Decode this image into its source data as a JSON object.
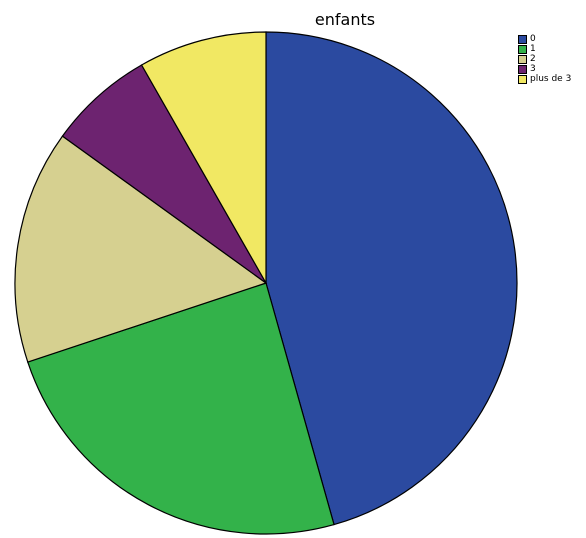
{
  "chart_data": {
    "type": "pie",
    "title": "enfants",
    "categories": [
      "0",
      "1",
      "2",
      "3",
      "plus de 3"
    ],
    "values": [
      47.0,
      25.0,
      15.5,
      7.0,
      8.5
    ],
    "colors": [
      "#2b4aa0",
      "#33b24a",
      "#d6d090",
      "#6d2370",
      "#f1e863"
    ],
    "start_angle_deg": 0,
    "direction": "clockwise",
    "legend_position": "top-right"
  }
}
